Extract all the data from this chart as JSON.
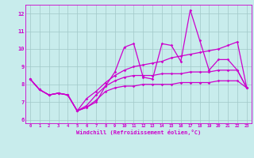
{
  "xlabel": "Windchill (Refroidissement éolien,°C)",
  "xlim": [
    -0.5,
    23.5
  ],
  "ylim": [
    5.8,
    12.5
  ],
  "yticks": [
    6,
    7,
    8,
    9,
    10,
    11,
    12
  ],
  "xticks": [
    0,
    1,
    2,
    3,
    4,
    5,
    6,
    7,
    8,
    9,
    10,
    11,
    12,
    13,
    14,
    15,
    16,
    17,
    18,
    19,
    20,
    21,
    22,
    23
  ],
  "bg_color": "#c8ecec",
  "grid_color": "#a0c8c8",
  "line_color": "#cc00cc",
  "s1": [
    8.3,
    7.7,
    7.4,
    7.5,
    7.4,
    6.5,
    6.7,
    7.0,
    7.9,
    8.7,
    10.1,
    10.3,
    8.4,
    8.3,
    10.3,
    10.2,
    9.3,
    12.2,
    10.5,
    8.8,
    9.4,
    9.4,
    8.8,
    7.8
  ],
  "s2": [
    8.3,
    7.7,
    7.4,
    7.5,
    7.4,
    6.5,
    7.2,
    7.6,
    8.1,
    8.5,
    8.8,
    9.0,
    9.1,
    9.2,
    9.3,
    9.5,
    9.6,
    9.7,
    9.8,
    9.9,
    10.0,
    10.2,
    10.4,
    7.8
  ],
  "s3": [
    8.3,
    7.7,
    7.4,
    7.5,
    7.4,
    6.5,
    6.8,
    7.4,
    7.9,
    8.2,
    8.4,
    8.5,
    8.5,
    8.5,
    8.6,
    8.6,
    8.6,
    8.7,
    8.7,
    8.7,
    8.8,
    8.8,
    8.8,
    7.8
  ],
  "s4": [
    8.3,
    7.7,
    7.4,
    7.5,
    7.4,
    6.5,
    6.7,
    7.1,
    7.6,
    7.8,
    7.9,
    7.9,
    8.0,
    8.0,
    8.0,
    8.0,
    8.1,
    8.1,
    8.1,
    8.1,
    8.2,
    8.2,
    8.2,
    7.8
  ]
}
